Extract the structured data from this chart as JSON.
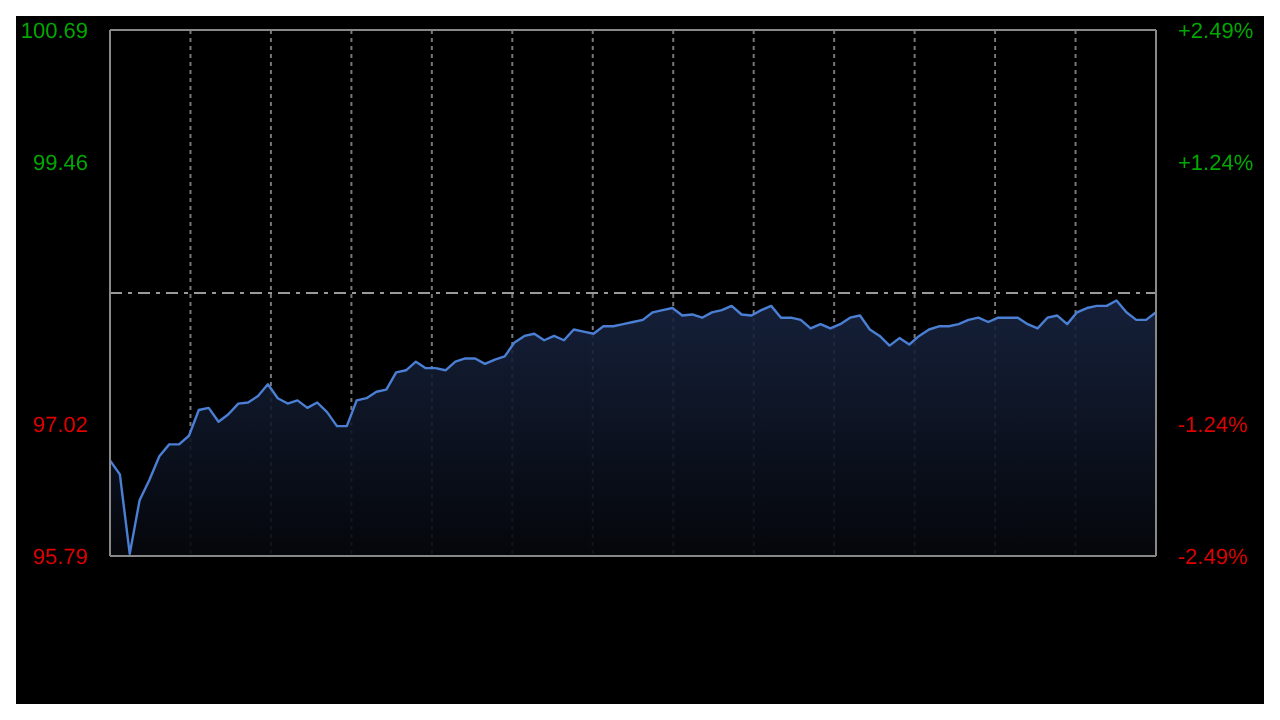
{
  "chart_data": {
    "type": "area",
    "categories": [
      null,
      null,
      null,
      null,
      null,
      null,
      null,
      null,
      null,
      null,
      null,
      null,
      null,
      null,
      null,
      null,
      null,
      null,
      null,
      null,
      null,
      null,
      null,
      null,
      null,
      null,
      null,
      null,
      null,
      null,
      null,
      null,
      null,
      null,
      null,
      null,
      null,
      null,
      null,
      null,
      null,
      null,
      null,
      null,
      null,
      null,
      null,
      null,
      null,
      null,
      null,
      null,
      null,
      null,
      null,
      null,
      null,
      null,
      null,
      null,
      null,
      null,
      null,
      null,
      null,
      null,
      null,
      null,
      null,
      null,
      null,
      null,
      null,
      null,
      null,
      null,
      null,
      null,
      null,
      null,
      null,
      null,
      null,
      null,
      null,
      null,
      null,
      null,
      null,
      null,
      null,
      null,
      null,
      null,
      null,
      null,
      null,
      null,
      null,
      null,
      null,
      null,
      null,
      null,
      null,
      null,
      null
    ],
    "series": [
      {
        "color": "#4a7fd4",
        "values": [
          96.68,
          96.55,
          95.81,
          96.31,
          96.5,
          96.72,
          96.83,
          96.83,
          96.91,
          97.15,
          97.17,
          97.04,
          97.11,
          97.21,
          97.22,
          97.28,
          97.39,
          97.26,
          97.21,
          97.24,
          97.17,
          97.22,
          97.13,
          97.0,
          97.0,
          97.24,
          97.26,
          97.32,
          97.34,
          97.5,
          97.52,
          97.6,
          97.54,
          97.54,
          97.52,
          97.6,
          97.63,
          97.63,
          97.58,
          97.62,
          97.65,
          97.78,
          97.84,
          97.86,
          97.8,
          97.84,
          97.8,
          97.9,
          97.88,
          97.86,
          97.93,
          97.93,
          97.95,
          97.97,
          97.99,
          98.06,
          98.08,
          98.1,
          98.03,
          98.04,
          98.01,
          98.06,
          98.08,
          98.12,
          98.04,
          98.03,
          98.08,
          98.12,
          98.01,
          98.01,
          97.99,
          97.91,
          97.95,
          97.91,
          97.95,
          98.01,
          98.03,
          97.9,
          97.84,
          97.75,
          97.82,
          97.76,
          97.84,
          97.9,
          97.93,
          97.93,
          97.95,
          97.99,
          98.01,
          97.97,
          98.01,
          98.01,
          98.01,
          97.95,
          97.91,
          98.01,
          98.03,
          97.95,
          98.06,
          98.1,
          98.12,
          98.12,
          98.17,
          98.06,
          97.99,
          97.99,
          98.06
        ]
      }
    ],
    "ylim": [
      95.79,
      100.69
    ],
    "yticks": [
      95.79,
      97.02,
      99.46,
      100.69
    ],
    "y2lim": [
      -2.49,
      2.49
    ],
    "y2ticks": [
      {
        "value": -2.49,
        "label": "-2.49%"
      },
      {
        "value": -1.24,
        "label": "-1.24%"
      },
      {
        "value": 1.24,
        "label": "+1.24%"
      },
      {
        "value": 2.49,
        "label": "+2.49%"
      }
    ],
    "ref_lines": [
      {
        "axis": "y",
        "value": 98.24,
        "line_style": "dashed"
      }
    ],
    "grid": true
  }
}
